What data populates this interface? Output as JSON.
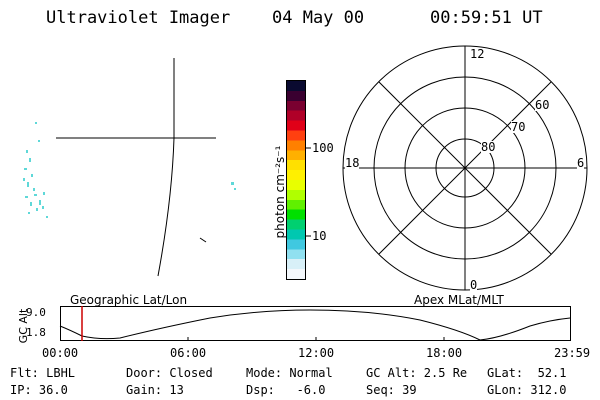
{
  "header": {
    "instrument": "Ultraviolet Imager",
    "date": "04 May 00",
    "time": "00:59:51 UT"
  },
  "colorbar": {
    "unit_label": "photon cm⁻²s⁻¹",
    "ticks": [
      "100",
      "10"
    ],
    "colors": [
      "#0a0a30",
      "#3a0030",
      "#7a0030",
      "#b00028",
      "#e00018",
      "#ff4010",
      "#ff8000",
      "#ffb000",
      "#ffe000",
      "#fff000",
      "#e8ff00",
      "#b0ff00",
      "#60f000",
      "#00e000",
      "#00d070",
      "#00c8b0",
      "#40c8e0",
      "#90e0f0",
      "#d8f0f8",
      "#f4f8fc"
    ]
  },
  "polar_plot": {
    "mlt_labels": {
      "top": "12",
      "left": "18",
      "right": "6",
      "bottom": "0"
    },
    "lat_labels": [
      "80",
      "70",
      "60"
    ]
  },
  "timeline": {
    "axis_label": "GC Alt",
    "y_ticks": [
      "9.0",
      "1.8"
    ],
    "left_title": "Geographic Lat/Lon",
    "right_title": "Apex MLat/MLT",
    "x_ticks": [
      "00:00",
      "06:00",
      "12:00",
      "18:00",
      "23:59"
    ],
    "marker_color": "#cc0000"
  },
  "footer": {
    "row1": {
      "flt": "Flt: LBHL",
      "door": "Door: Closed",
      "mode": "Mode: Normal",
      "gcalt": "GC Alt: 2.5 Re",
      "glat": "GLat:  52.1"
    },
    "row2": {
      "ip": "IP: 36.0",
      "gain": "Gain: 13",
      "dsp": "Dsp:   -6.0",
      "seq": "Seq: 39",
      "glon": "GLon: 312.0"
    }
  }
}
